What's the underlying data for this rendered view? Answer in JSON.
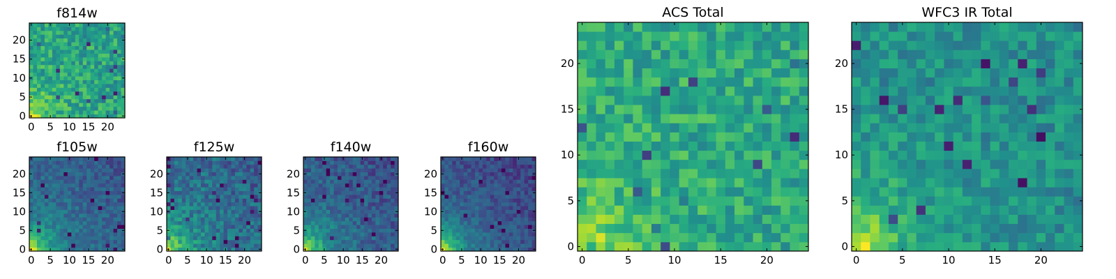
{
  "figure": {
    "background": "#ffffff",
    "colormap": "viridis"
  },
  "chart_data": [
    {
      "id": "f814w",
      "type": "heatmap",
      "title": "f814w",
      "xlim": [
        -0.5,
        24.5
      ],
      "ylim": [
        -0.5,
        24.5
      ],
      "xticks": [
        0,
        5,
        10,
        15,
        20
      ],
      "yticks": [
        0,
        5,
        10,
        15,
        20
      ],
      "xticklabels": [
        "0",
        "5",
        "10",
        "15",
        "20"
      ],
      "yticklabels": [
        "0",
        "5",
        "10",
        "15",
        "20"
      ],
      "grid_shape": [
        25,
        25
      ],
      "corner_value": 0.97,
      "baseline_value": 0.58,
      "noise_amplitude": 0.16,
      "gradient_direction": "bright bottom-left corner, noisy field elsewhere"
    },
    {
      "id": "f105w",
      "type": "heatmap",
      "title": "f105w",
      "xlim": [
        -0.5,
        24.5
      ],
      "ylim": [
        -0.5,
        24.5
      ],
      "xticks": [
        0,
        5,
        10,
        15,
        20
      ],
      "yticks": [
        0,
        5,
        10,
        15,
        20
      ],
      "xticklabels": [
        "0",
        "5",
        "10",
        "15",
        "20"
      ],
      "yticklabels": [
        "0",
        "5",
        "10",
        "15",
        "20"
      ],
      "grid_shape": [
        25,
        25
      ],
      "corner_value": 0.97,
      "baseline_value": 0.38,
      "noise_amplitude": 0.1,
      "gradient_direction": "bright bottom-left, darkening toward top-right"
    },
    {
      "id": "f125w",
      "type": "heatmap",
      "title": "f125w",
      "xlim": [
        -0.5,
        24.5
      ],
      "ylim": [
        -0.5,
        24.5
      ],
      "xticks": [
        0,
        5,
        10,
        15,
        20
      ],
      "yticks": [
        0,
        5,
        10,
        15,
        20
      ],
      "xticklabels": [
        "0",
        "5",
        "10",
        "15",
        "20"
      ],
      "yticklabels": [
        "0",
        "5",
        "10",
        "15",
        "20"
      ],
      "grid_shape": [
        25,
        25
      ],
      "corner_value": 0.95,
      "baseline_value": 0.42,
      "noise_amplitude": 0.14,
      "gradient_direction": "bright bottom-left, darkening toward top-right"
    },
    {
      "id": "f140w",
      "type": "heatmap",
      "title": "f140w",
      "xlim": [
        -0.5,
        24.5
      ],
      "ylim": [
        -0.5,
        24.5
      ],
      "xticks": [
        0,
        5,
        10,
        15,
        20
      ],
      "yticks": [
        0,
        5,
        10,
        15,
        20
      ],
      "xticklabels": [
        "0",
        "5",
        "10",
        "15",
        "20"
      ],
      "yticklabels": [
        "0",
        "5",
        "10",
        "15",
        "20"
      ],
      "grid_shape": [
        25,
        25
      ],
      "corner_value": 0.97,
      "baseline_value": 0.36,
      "noise_amplitude": 0.11,
      "gradient_direction": "bright bottom-left, darkening toward top-right"
    },
    {
      "id": "f160w",
      "type": "heatmap",
      "title": "f160w",
      "xlim": [
        -0.5,
        24.5
      ],
      "ylim": [
        -0.5,
        24.5
      ],
      "xticks": [
        0,
        5,
        10,
        15,
        20
      ],
      "yticks": [
        0,
        5,
        10,
        15,
        20
      ],
      "xticklabels": [
        "0",
        "5",
        "10",
        "15",
        "20"
      ],
      "yticklabels": [
        "0",
        "5",
        "10",
        "15",
        "20"
      ],
      "grid_shape": [
        25,
        25
      ],
      "corner_value": 0.97,
      "baseline_value": 0.32,
      "noise_amplitude": 0.09,
      "gradient_direction": "bright bottom-left, darkening toward top-right"
    },
    {
      "id": "acs-total",
      "type": "heatmap",
      "title": "ACS Total",
      "xlim": [
        -0.5,
        24.5
      ],
      "ylim": [
        -0.5,
        24.5
      ],
      "xticks": [
        0,
        5,
        10,
        15,
        20
      ],
      "yticks": [
        0,
        5,
        10,
        15,
        20
      ],
      "xticklabels": [
        "0",
        "5",
        "10",
        "15",
        "20"
      ],
      "yticklabels": [
        "0",
        "5",
        "10",
        "15",
        "20"
      ],
      "grid_shape": [
        25,
        25
      ],
      "corner_value": 0.97,
      "baseline_value": 0.6,
      "noise_amplitude": 0.15,
      "gradient_direction": "bright bottom-left corner, noisy green field elsewhere"
    },
    {
      "id": "wfc3-ir-total",
      "type": "heatmap",
      "title": "WFC3 IR Total",
      "xlim": [
        -0.5,
        24.5
      ],
      "ylim": [
        -0.5,
        24.5
      ],
      "xticks": [
        0,
        5,
        10,
        15,
        20
      ],
      "yticks": [
        0,
        5,
        10,
        15,
        20
      ],
      "xticklabels": [
        "0",
        "5",
        "10",
        "15",
        "20"
      ],
      "yticklabels": [
        "0",
        "5",
        "10",
        "15",
        "20"
      ],
      "grid_shape": [
        25,
        25
      ],
      "corner_value": 0.97,
      "baseline_value": 0.5,
      "noise_amplitude": 0.13,
      "gradient_direction": "bright bottom-left, darkening toward top-right"
    }
  ]
}
